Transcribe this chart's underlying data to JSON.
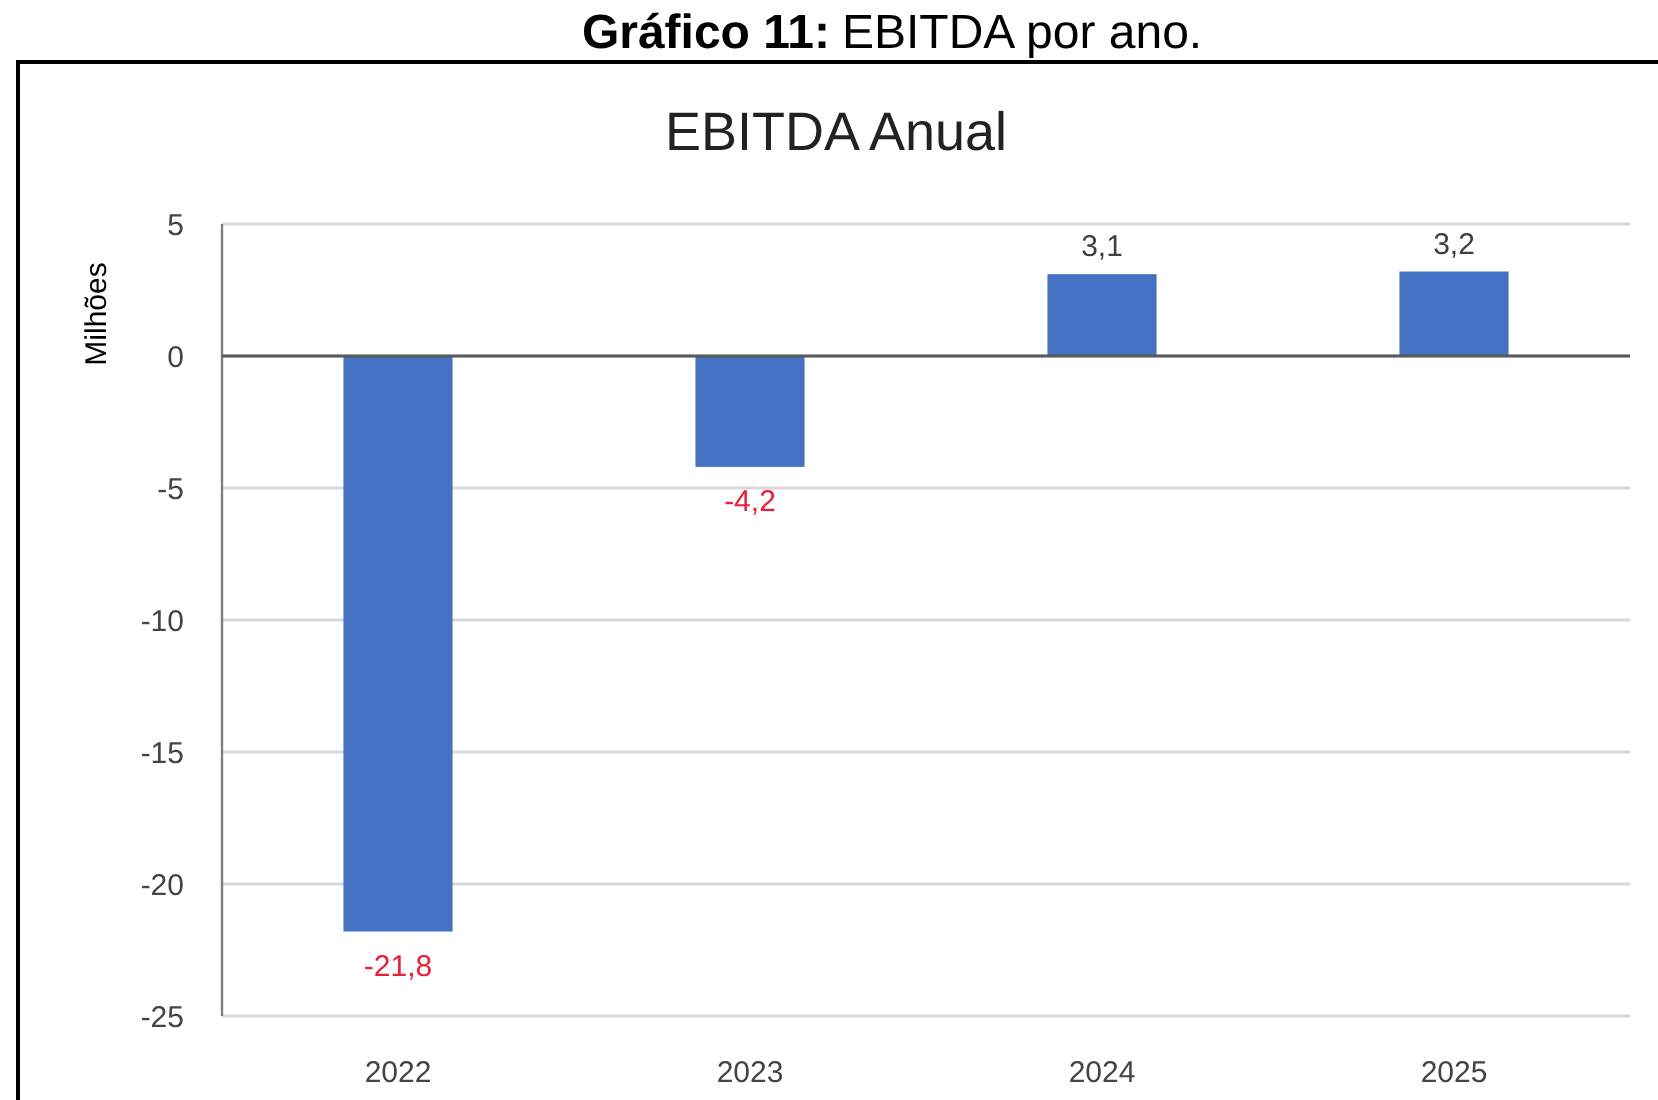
{
  "chart_data": {
    "type": "bar",
    "title": "EBITDA Anual",
    "ylabel": "Milhões",
    "annotations": [
      "Gráfico 11:",
      "EBITDA por ano."
    ],
    "categories": [
      "2022",
      "2023",
      "2024",
      "2025"
    ],
    "values": [
      -21.8,
      -4.2,
      3.1,
      3.2
    ],
    "value_labels": [
      "-21,8",
      "-4,2",
      "3,1",
      "3,2"
    ],
    "color": "#4472c4",
    "ylim": [
      -25,
      5
    ],
    "yticks": [
      5,
      0,
      -5,
      -10,
      -15,
      -20,
      -25
    ],
    "grid": "y"
  }
}
